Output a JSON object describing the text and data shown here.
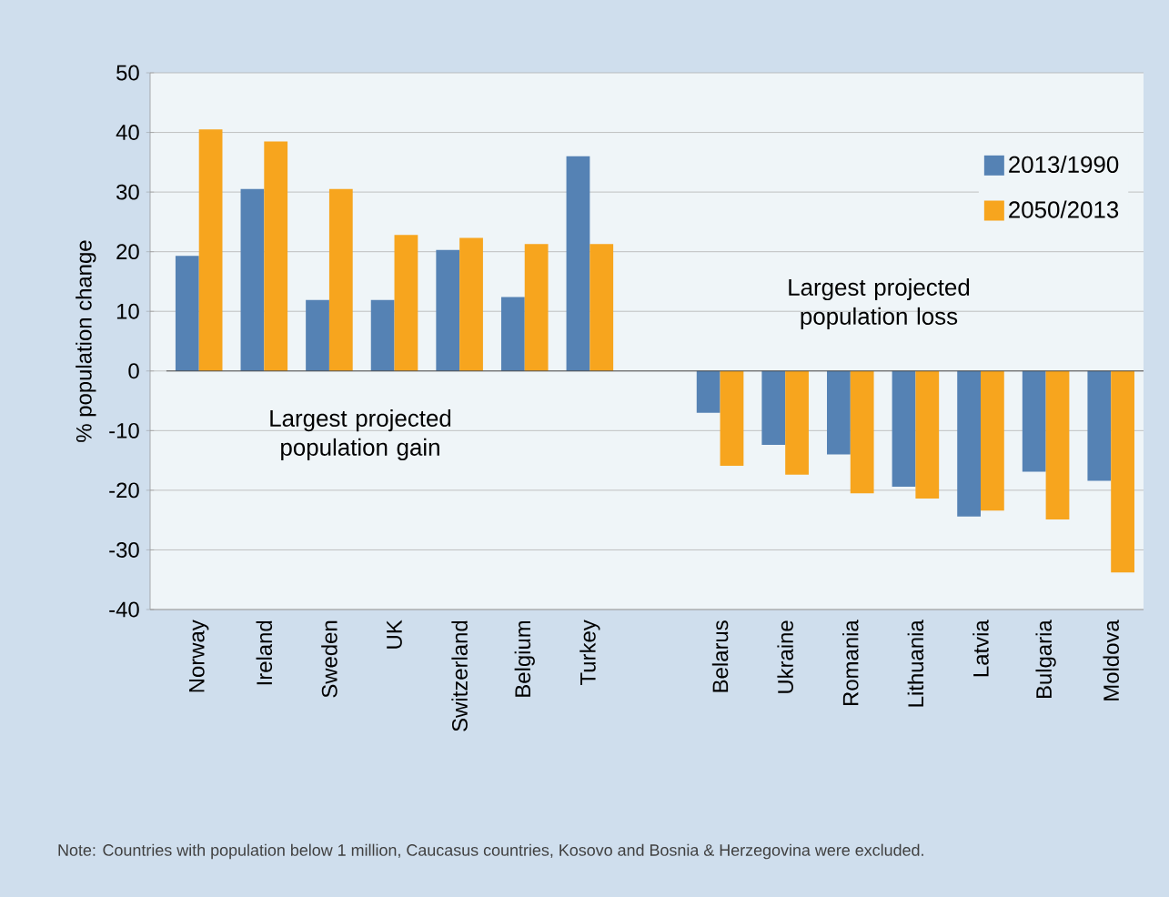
{
  "chart_data": {
    "type": "bar",
    "ylabel": "% population change",
    "categories": [
      "Norway",
      "Ireland",
      "Sweden",
      "UK",
      "Switzerland",
      "Belgium",
      "Turkey",
      null,
      "Belarus",
      "Ukraine",
      "Romania",
      "Lithuania",
      "Latvia",
      "Bulgaria",
      "Moldova"
    ],
    "series": [
      {
        "name": "2013/1990",
        "color": "#5582b4",
        "values": [
          19.3,
          30.5,
          11.9,
          11.9,
          20.3,
          12.4,
          36.0,
          null,
          -7.0,
          -12.4,
          -14.0,
          -19.4,
          -24.4,
          -16.9,
          -18.4
        ]
      },
      {
        "name": "2050/2013",
        "color": "#f7a51e",
        "values": [
          40.5,
          38.5,
          30.5,
          22.8,
          22.3,
          21.3,
          21.3,
          null,
          -15.9,
          -17.4,
          -20.5,
          -21.4,
          -23.4,
          -24.9,
          -33.8
        ]
      }
    ],
    "ylim": [
      -40,
      50
    ],
    "yticks": [
      -40,
      -30,
      -20,
      -10,
      0,
      10,
      20,
      30,
      40,
      50
    ],
    "grid": "y",
    "legend": "top right",
    "annotations": [
      "Largest projected population gain",
      "Largest projected population loss",
      "Note:  Countries with population below 1 million, Caucasus countries, Kosovo and Bosnia & Herzegovina were excluded."
    ]
  }
}
